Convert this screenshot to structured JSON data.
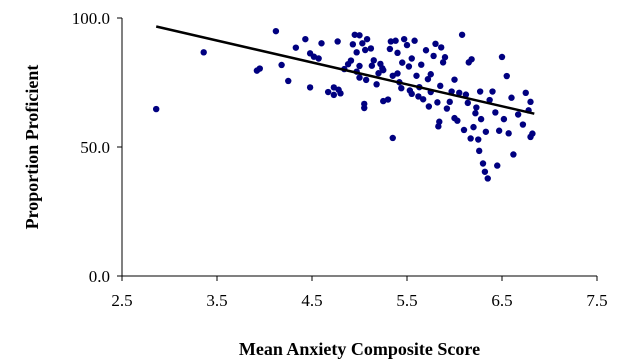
{
  "chart_data": {
    "type": "scatter",
    "title": "",
    "xlabel": "Mean Anxiety Composite Score",
    "ylabel": "Proportion Proficient",
    "xlim": [
      2.5,
      7.5
    ],
    "ylim": [
      0,
      100
    ],
    "xticks": [
      "2.5",
      "3.5",
      "4.5",
      "5.5",
      "6.5",
      "7.5"
    ],
    "yticks": [
      "0.0",
      "50.0",
      "100.0"
    ],
    "grid": false,
    "legend": "none",
    "point_color": "#000080",
    "trendline_color": "#000000",
    "trendline": {
      "x": [
        2.86,
        6.84
      ],
      "y": [
        96.7,
        62.9
      ]
    },
    "points": [
      [
        2.86,
        64.7
      ],
      [
        3.36,
        86.7
      ],
      [
        3.92,
        79.6
      ],
      [
        3.95,
        80.4
      ],
      [
        4.12,
        94.9
      ],
      [
        4.18,
        81.8
      ],
      [
        4.25,
        75.6
      ],
      [
        4.33,
        88.5
      ],
      [
        4.43,
        91.8
      ],
      [
        4.48,
        73.1
      ],
      [
        4.48,
        86.3
      ],
      [
        4.52,
        85.0
      ],
      [
        4.57,
        84.3
      ],
      [
        4.6,
        90.2
      ],
      [
        4.67,
        71.3
      ],
      [
        4.73,
        70.2
      ],
      [
        4.73,
        73.1
      ],
      [
        4.77,
        90.9
      ],
      [
        4.78,
        72.2
      ],
      [
        4.8,
        70.8
      ],
      [
        4.84,
        80.2
      ],
      [
        4.88,
        82.1
      ],
      [
        4.91,
        83.5
      ],
      [
        4.93,
        89.8
      ],
      [
        4.95,
        93.5
      ],
      [
        4.97,
        79.2
      ],
      [
        4.97,
        86.7
      ],
      [
        5.0,
        93.3
      ],
      [
        5.0,
        76.9
      ],
      [
        5.0,
        81.4
      ],
      [
        5.03,
        90.2
      ],
      [
        5.05,
        65.1
      ],
      [
        5.05,
        66.7
      ],
      [
        5.06,
        87.6
      ],
      [
        5.07,
        76.0
      ],
      [
        5.08,
        91.8
      ],
      [
        5.12,
        88.2
      ],
      [
        5.13,
        81.5
      ],
      [
        5.15,
        83.6
      ],
      [
        5.18,
        74.3
      ],
      [
        5.2,
        78.6
      ],
      [
        5.22,
        82.2
      ],
      [
        5.24,
        80.5
      ],
      [
        5.25,
        79.8
      ],
      [
        5.25,
        67.8
      ],
      [
        5.3,
        68.4
      ],
      [
        5.32,
        88.0
      ],
      [
        5.33,
        90.9
      ],
      [
        5.35,
        77.6
      ],
      [
        5.35,
        53.5
      ],
      [
        5.38,
        91.2
      ],
      [
        5.4,
        78.5
      ],
      [
        5.4,
        86.5
      ],
      [
        5.42,
        75.1
      ],
      [
        5.44,
        72.8
      ],
      [
        5.45,
        82.7
      ],
      [
        5.47,
        91.8
      ],
      [
        5.5,
        89.5
      ],
      [
        5.52,
        81.2
      ],
      [
        5.53,
        71.9
      ],
      [
        5.55,
        70.6
      ],
      [
        5.55,
        84.3
      ],
      [
        5.58,
        91.2
      ],
      [
        5.6,
        77.6
      ],
      [
        5.62,
        69.6
      ],
      [
        5.63,
        73.2
      ],
      [
        5.65,
        81.9
      ],
      [
        5.67,
        68.5
      ],
      [
        5.7,
        87.5
      ],
      [
        5.72,
        76.3
      ],
      [
        5.73,
        65.7
      ],
      [
        5.75,
        78.2
      ],
      [
        5.75,
        71.3
      ],
      [
        5.78,
        85.3
      ],
      [
        5.8,
        90.0
      ],
      [
        5.82,
        67.3
      ],
      [
        5.83,
        58.0
      ],
      [
        5.84,
        59.8
      ],
      [
        5.85,
        73.7
      ],
      [
        5.86,
        88.6
      ],
      [
        5.88,
        82.8
      ],
      [
        5.9,
        84.8
      ],
      [
        5.92,
        64.9
      ],
      [
        5.95,
        67.5
      ],
      [
        5.97,
        71.5
      ],
      [
        6.0,
        76.1
      ],
      [
        6.0,
        61.2
      ],
      [
        6.03,
        60.2
      ],
      [
        6.05,
        71.0
      ],
      [
        6.08,
        93.5
      ],
      [
        6.1,
        56.6
      ],
      [
        6.12,
        70.3
      ],
      [
        6.14,
        67.1
      ],
      [
        6.15,
        82.8
      ],
      [
        6.17,
        53.3
      ],
      [
        6.18,
        84.0
      ],
      [
        6.2,
        57.7
      ],
      [
        6.22,
        63.1
      ],
      [
        6.23,
        65.3
      ],
      [
        6.25,
        52.9
      ],
      [
        6.26,
        48.5
      ],
      [
        6.27,
        71.5
      ],
      [
        6.28,
        60.8
      ],
      [
        6.3,
        43.6
      ],
      [
        6.32,
        40.4
      ],
      [
        6.33,
        55.9
      ],
      [
        6.35,
        37.8
      ],
      [
        6.37,
        68.2
      ],
      [
        6.4,
        71.5
      ],
      [
        6.43,
        63.4
      ],
      [
        6.45,
        42.8
      ],
      [
        6.47,
        56.3
      ],
      [
        6.5,
        84.9
      ],
      [
        6.52,
        60.8
      ],
      [
        6.55,
        77.5
      ],
      [
        6.57,
        55.3
      ],
      [
        6.6,
        69.1
      ],
      [
        6.62,
        47.1
      ],
      [
        6.67,
        62.6
      ],
      [
        6.72,
        58.7
      ],
      [
        6.75,
        71.0
      ],
      [
        6.78,
        64.2
      ],
      [
        6.8,
        53.9
      ],
      [
        6.8,
        67.5
      ],
      [
        6.82,
        55.2
      ]
    ]
  }
}
